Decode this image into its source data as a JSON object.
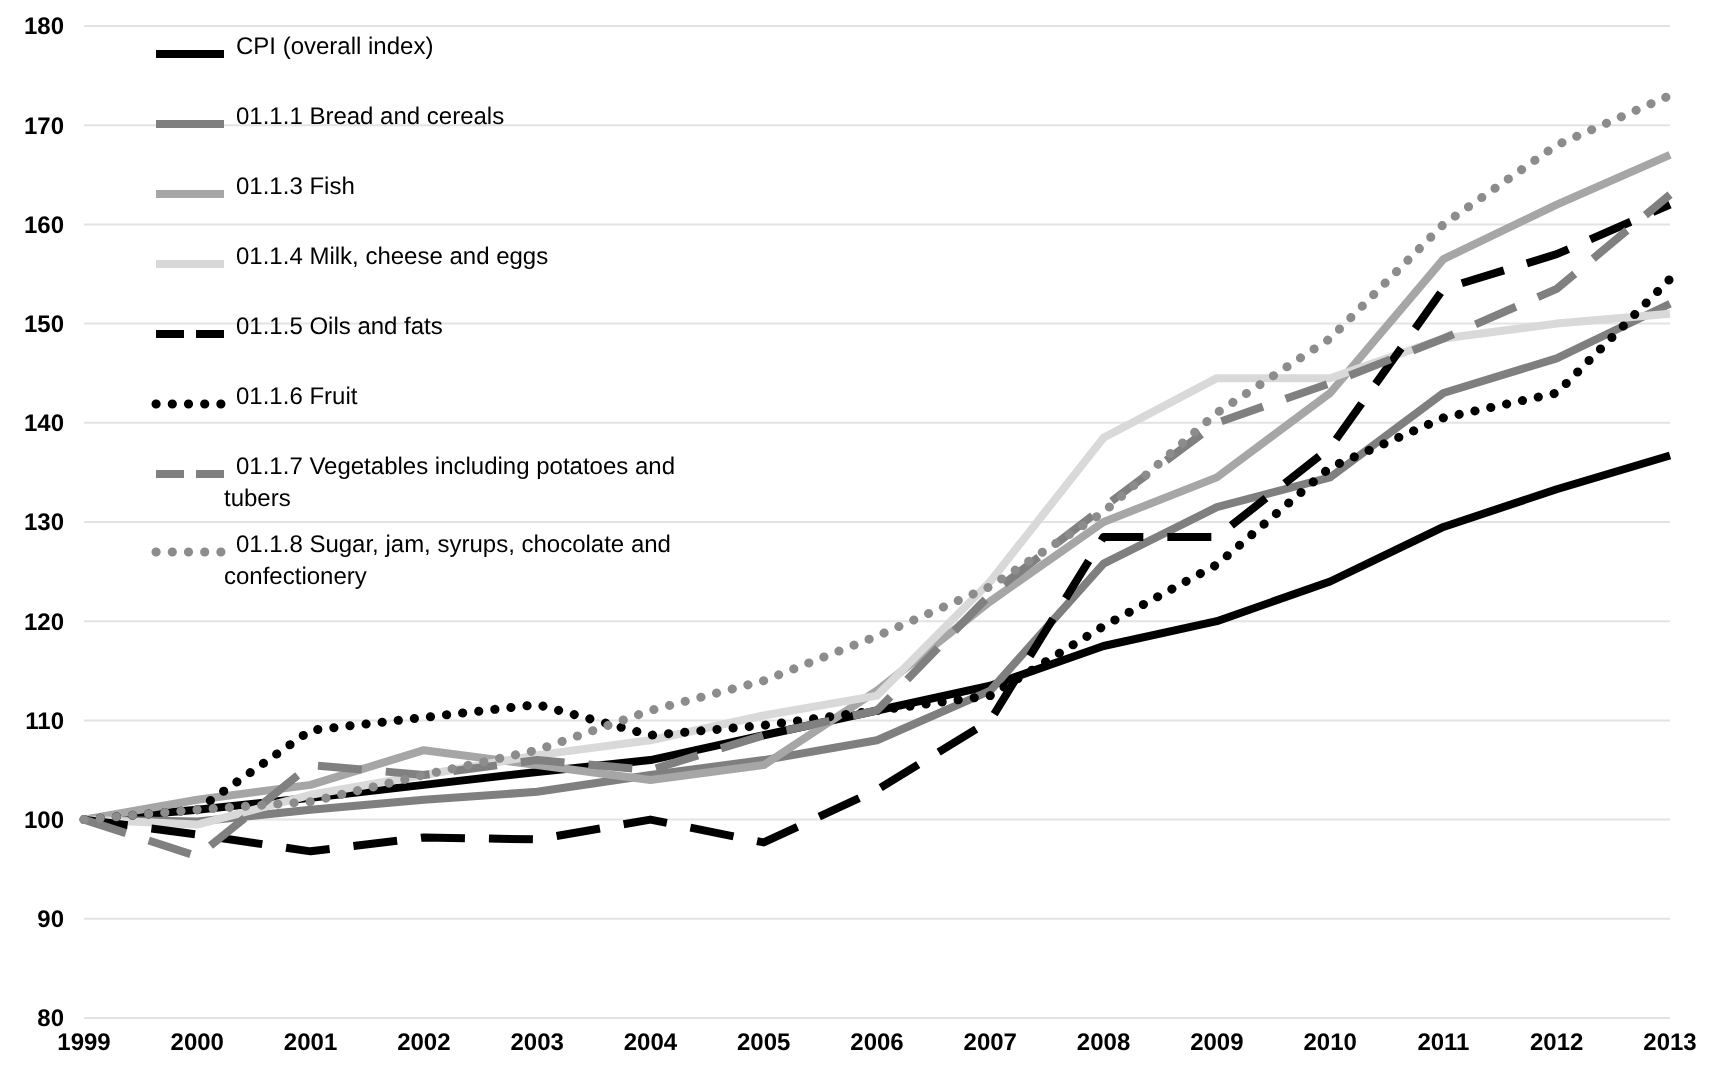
{
  "chart_data": {
    "type": "line",
    "x": [
      1999,
      2000,
      2001,
      2002,
      2003,
      2004,
      2005,
      2006,
      2007,
      2008,
      2009,
      2010,
      2011,
      2012,
      2013
    ],
    "xlim": [
      1999,
      2013
    ],
    "xticks": [
      1999,
      2000,
      2001,
      2002,
      2003,
      2004,
      2005,
      2006,
      2007,
      2008,
      2009,
      2010,
      2011,
      2012,
      2013
    ],
    "ylim": [
      80,
      180
    ],
    "yticks": [
      80,
      90,
      100,
      110,
      120,
      130,
      140,
      150,
      160,
      170,
      180
    ],
    "grid": "y",
    "legend": "top left",
    "series": [
      {
        "name": "CPI (overall index)",
        "color": "#000000",
        "line_style": "solid",
        "values": [
          100,
          101,
          102.2,
          103.5,
          104.8,
          106,
          108.5,
          111,
          113.5,
          117.5,
          120,
          124,
          129.5,
          133.3,
          136.7
        ]
      },
      {
        "name": "01.1.1 Bread and cereals",
        "color": "#7f7f7f",
        "line_style": "solid",
        "values": [
          100,
          99.8,
          101,
          102,
          102.8,
          104.5,
          106,
          108,
          113,
          125.8,
          131.5,
          134.5,
          143,
          146.5,
          152
        ]
      },
      {
        "name": "01.1.3 Fish",
        "color": "#a6a6a6",
        "line_style": "solid",
        "values": [
          100,
          102,
          103.5,
          107,
          105.5,
          104,
          105.5,
          113,
          122,
          130,
          134.5,
          143,
          156.5,
          162,
          167
        ]
      },
      {
        "name": "01.1.4 Milk, cheese and eggs",
        "color": "#d9d9d9",
        "line_style": "solid",
        "values": [
          100,
          99.5,
          102.5,
          104.5,
          106.5,
          108,
          110.5,
          112.5,
          124,
          138.5,
          144.5,
          144.5,
          148.5,
          150,
          151
        ]
      },
      {
        "name": "01.1.5 Oils and fats",
        "color": "#000000",
        "line_style": "dashed",
        "values": [
          100,
          98.5,
          96.8,
          98.2,
          98,
          100,
          97.7,
          103,
          110,
          128.5,
          128.5,
          137.5,
          153.5,
          157,
          162
        ]
      },
      {
        "name": "01.1.6 Fruit",
        "color": "#000000",
        "line_style": "dotted",
        "values": [
          100,
          101,
          109,
          110.3,
          111.6,
          108.5,
          109.5,
          111,
          112.5,
          119.5,
          125.7,
          135.5,
          140.5,
          143,
          154.5
        ]
      },
      {
        "name": "01.1.7 Vegetables including potatoes and tubers",
        "color": "#808080",
        "line_style": "dashed",
        "values": [
          100,
          96.3,
          105.5,
          104.5,
          106,
          105,
          108.5,
          111,
          122.7,
          131.5,
          140,
          144,
          148.5,
          153.5,
          163
        ]
      },
      {
        "name": "01.1.8 Sugar, jam, syrups, chocolate and confectionery",
        "color": "#8c8c8c",
        "line_style": "dotted",
        "values": [
          100,
          101,
          101.8,
          104.5,
          107,
          111,
          114,
          118.5,
          123.5,
          131,
          141,
          148.5,
          160,
          168,
          173
        ]
      }
    ]
  }
}
